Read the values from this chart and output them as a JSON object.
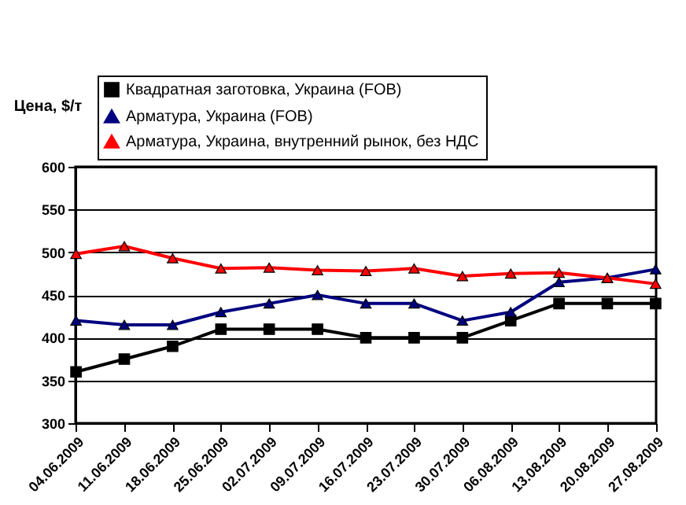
{
  "chart_data": {
    "type": "line",
    "ylabel": "Цена, $/т",
    "categories": [
      "04.06.2009",
      "11.06.2009",
      "18.06.2009",
      "25.06.2009",
      "02.07.2009",
      "09.07.2009",
      "16.07.2009",
      "23.07.2009",
      "30.07.2009",
      "06.08.2009",
      "13.08.2009",
      "20.08.2009",
      "27.08.2009"
    ],
    "series": [
      {
        "name": "Квадратная заготовка, Украина (FOB)",
        "color": "#000000",
        "marker": "square",
        "values": [
          360,
          375,
          390,
          410,
          410,
          410,
          400,
          400,
          400,
          420,
          440,
          440,
          440
        ]
      },
      {
        "name": "Арматура, Украина (FOB)",
        "color": "#000080",
        "marker": "triangle",
        "values": [
          420,
          415,
          415,
          430,
          440,
          450,
          440,
          440,
          420,
          430,
          465,
          470,
          480
        ]
      },
      {
        "name": "Арматура, Украина, внутренний рынок, без НДС",
        "color": "#ff0000",
        "marker": "triangle",
        "values": [
          498,
          507,
          493,
          481,
          482,
          479,
          478,
          481,
          472,
          475,
          476,
          470,
          463
        ]
      }
    ],
    "ylim": [
      300,
      600
    ],
    "yticks": [
      300,
      350,
      400,
      450,
      500,
      550,
      600
    ],
    "grid": "y",
    "legend": "top"
  }
}
